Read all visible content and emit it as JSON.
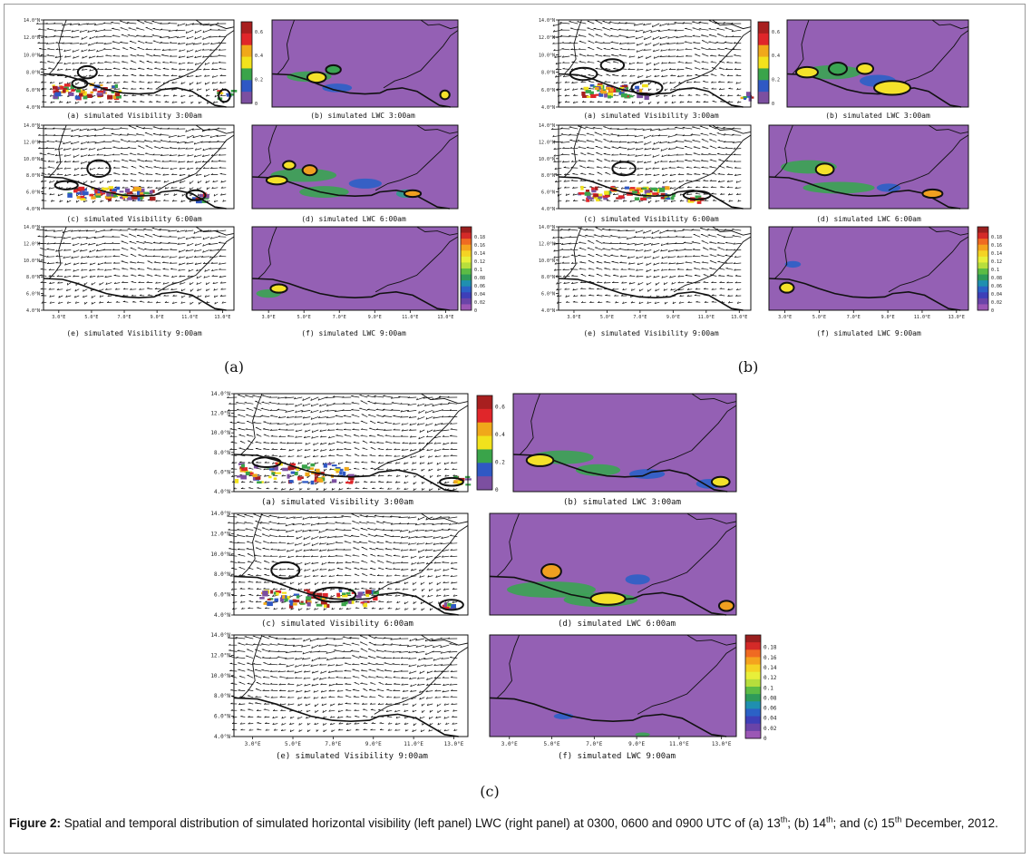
{
  "figure": {
    "caption_label": "Figure 2:",
    "caption_parts": [
      {
        "t": "Spatial and temporal distribution of simulated horizontal visibility (left panel) LWC (right panel) at 0300, 0600 and 0900 UTC of (a) 13"
      },
      {
        "sup": "th"
      },
      {
        "t": "; (b) 14"
      },
      {
        "sup": "th"
      },
      {
        "t": "; and (c) 15"
      },
      {
        "sup": "th"
      },
      {
        "t": " December, 2012."
      }
    ]
  },
  "group_labels": [
    "(a)",
    "(b)",
    "(c)"
  ],
  "panel_titles": {
    "vis_3": "(a) simulated Visibility 3:00am",
    "lwc_3": "(b) simulated LWC 3:00am",
    "vis_6": "(c) simulated Visibility 6:00am",
    "lwc_6": "(d) simulated LWC 6:00am",
    "vis_9": "(e) simulated Visibility 9:00am",
    "lwc_9": "(f) simulated LWC 9:00am"
  },
  "lat_ticks": [
    "14.0°N",
    "12.0°N",
    "10.0°N",
    "8.0°N",
    "6.0°N",
    "4.0°N"
  ],
  "lon_ticks": [
    "3.0°E",
    "5.0°E",
    "7.0°E",
    "9.0°E",
    "11.0°E",
    "13.0°E"
  ],
  "vis_colorbar": {
    "labels": [
      "0.6",
      "0.4",
      "0.2",
      "0"
    ],
    "colors": [
      "#a81f1f",
      "#e0262a",
      "#f0a81a",
      "#f2e21c",
      "#3aa44a",
      "#2f58c4",
      "#7c4fa0"
    ]
  },
  "lwc_colorbar": {
    "labels": [
      "0.18",
      "0.16",
      "0.14",
      "0.12",
      "0.1",
      "0.08",
      "0.06",
      "0.04",
      "0.02",
      "0"
    ],
    "colors": [
      "#9a1f1f",
      "#d42a28",
      "#ef6a22",
      "#f4a31e",
      "#f4d324",
      "#e8ef3a",
      "#b7de3c",
      "#5cbb45",
      "#2e9a5a",
      "#1f8fb0",
      "#2b61c6",
      "#3e3fb8",
      "#6a44a8",
      "#9b57b5"
    ]
  },
  "colors": {
    "purple_bg": "#9460b4",
    "map_bg": "#ffffff",
    "border": "#111111"
  }
}
